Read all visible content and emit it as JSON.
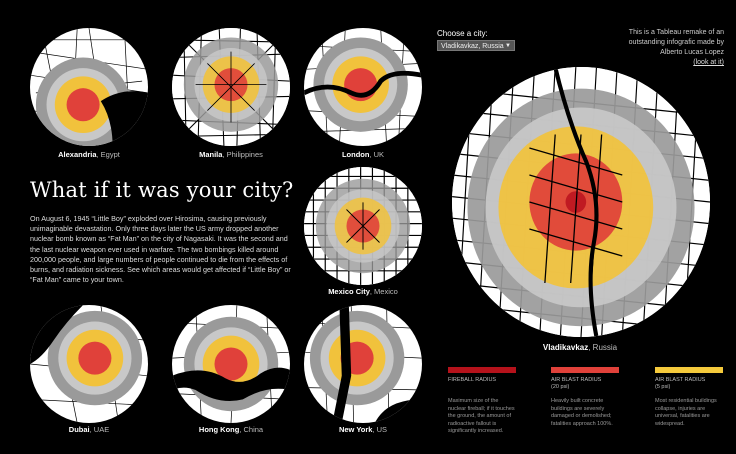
{
  "colors": {
    "fireball": "#b5121b",
    "fireball_fill": "#e0413a",
    "airblast5": "#f1c23c",
    "airblast20": "#f5ca3c",
    "radiation": "#9a9a9a",
    "thermal": "#c8c8c8"
  },
  "cities": [
    {
      "name": "Alexandria",
      "country": ", Egypt"
    },
    {
      "name": "Manila",
      "country": ", Philippines"
    },
    {
      "name": "London",
      "country": ", UK"
    },
    {
      "name": "Mexico City",
      "country": ", Mexico"
    },
    {
      "name": "Dubai",
      "country": ", UAE"
    },
    {
      "name": "Hong Kong",
      "country": ", China"
    },
    {
      "name": "New York",
      "country": ", US"
    }
  ],
  "main": {
    "title": "What if it was your city?",
    "paragraph": "On August 6, 1945 “Little Boy” exploded over Hirosima, causing previously unimaginable devastation. Only three days later the US army dropped another nuclear bomb known as “Fat Man” on the city of Nagasaki. It was the second and the last nuclear weapon ever used in warfare. The two bombings killed around 200,000 people, and large numbers of people continued to die from the effects of burns, and radiation sickness. See which areas would get affected if “Little Boy” or “Fat Man” came to your town."
  },
  "chooser": {
    "label": "Choose a city:",
    "selected": "Vladikavkaz, Russia"
  },
  "credit": {
    "line1": "This is a Tableau remake of an",
    "line2": "outstanding infografic made by",
    "line3": "Alberto Lucas Lopez",
    "link": "(look at it)"
  },
  "selected_city": {
    "name": "Vladikavkaz",
    "country": ", Russia"
  },
  "legend": [
    {
      "title": "FIREBALL RADIUS",
      "desc": "Maximum size of the nuclear fireball; if it touches the ground, the amount of radioactive fallout is significantly increased."
    },
    {
      "title": "AIR BLAST RADIUS",
      "sub": "(20 psi)",
      "desc": "Heavily built concrete buildings are severely damaged or demolished; fatalities approach 100%."
    },
    {
      "title": "AIR BLAST RADIUS",
      "sub": "(5 psi)",
      "desc": "Most residential buildings collapse, injuries are universal, fatalities are widespread."
    }
  ]
}
